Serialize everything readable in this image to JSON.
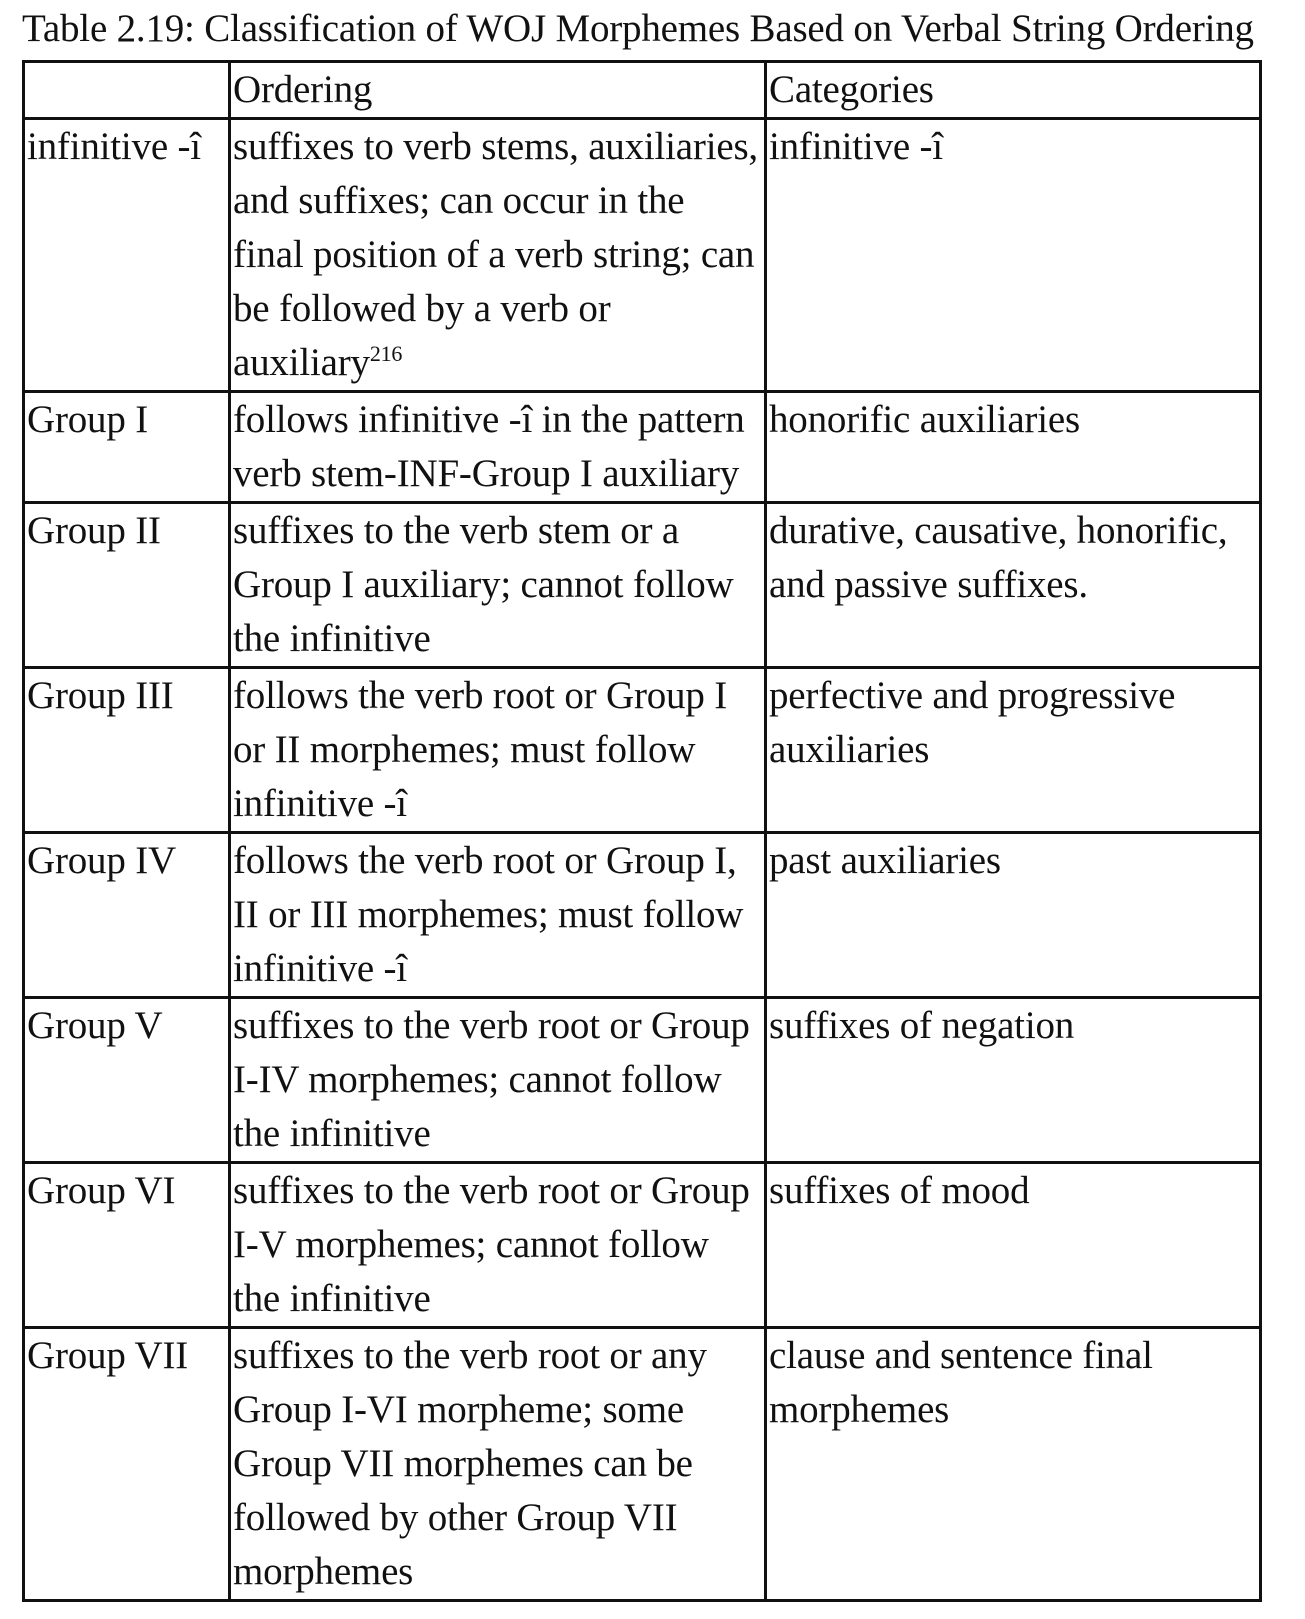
{
  "caption": "Table 2.19: Classification of WOJ Morphemes Based on Verbal String Ordering",
  "header": {
    "blank": "",
    "ordering": "Ordering",
    "categories": "Categories"
  },
  "rows": [
    {
      "label": "infinitive -î",
      "ordering": "suffixes to verb stems, auxiliaries, and suffixes; can occur in the final position of a verb string; can be followed by a verb or auxiliary",
      "footnote": "216",
      "categories": "infinitive -î"
    },
    {
      "label": "Group I",
      "ordering": "follows infinitive -î in the pattern verb stem-INF-Group I auxiliary",
      "categories": "honorific auxiliaries"
    },
    {
      "label": "Group II",
      "ordering": "suffixes to the verb stem or a Group I auxiliary; cannot follow the infinitive",
      "categories": "durative, causative, honorific, and passive suffixes."
    },
    {
      "label": "Group III",
      "ordering": "follows the verb root or Group I or II morphemes; must follow infinitive -î",
      "categories": "perfective and progressive auxiliaries"
    },
    {
      "label": "Group IV",
      "ordering": "follows the verb root or Group I, II or III morphemes; must follow infinitive -î",
      "categories": "past auxiliaries"
    },
    {
      "label": "Group V",
      "ordering": "suffixes to the verb root or Group I-IV morphemes; cannot follow the infinitive",
      "categories": "suffixes of negation"
    },
    {
      "label": "Group VI",
      "ordering": "suffixes to the verb root or Group I-V morphemes; cannot follow the infinitive",
      "categories": "suffixes of mood"
    },
    {
      "label": "Group VII",
      "ordering": "suffixes to the verb root or any Group I-VI morpheme; some Group VII morphemes can be followed by other Group VII morphemes",
      "categories": "clause and sentence final morphemes"
    }
  ]
}
